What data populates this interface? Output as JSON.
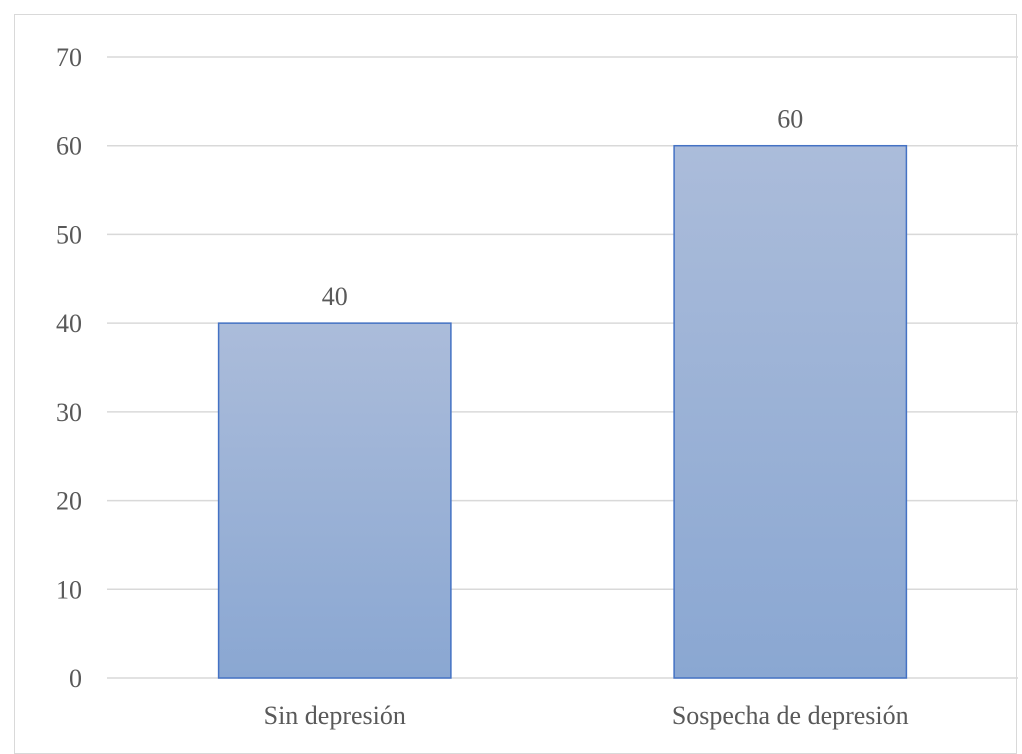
{
  "chart_data": {
    "type": "bar",
    "categories": [
      "Sin depresión",
      "Sospecha de depresión"
    ],
    "values": [
      40,
      60
    ],
    "data_labels": [
      "40",
      "60"
    ],
    "title": "",
    "xlabel": "",
    "ylabel": "",
    "ylim": [
      0,
      70
    ],
    "yticks": [
      "0",
      "10",
      "20",
      "30",
      "40",
      "50",
      "60",
      "70"
    ],
    "grid": true,
    "legend": "none",
    "colors": {
      "bar_top": "#abbcda",
      "bar_bottom": "#8aa7d2",
      "bar_border": "#4472c4",
      "gridline": "#d9d9d9",
      "text": "#595959"
    }
  }
}
